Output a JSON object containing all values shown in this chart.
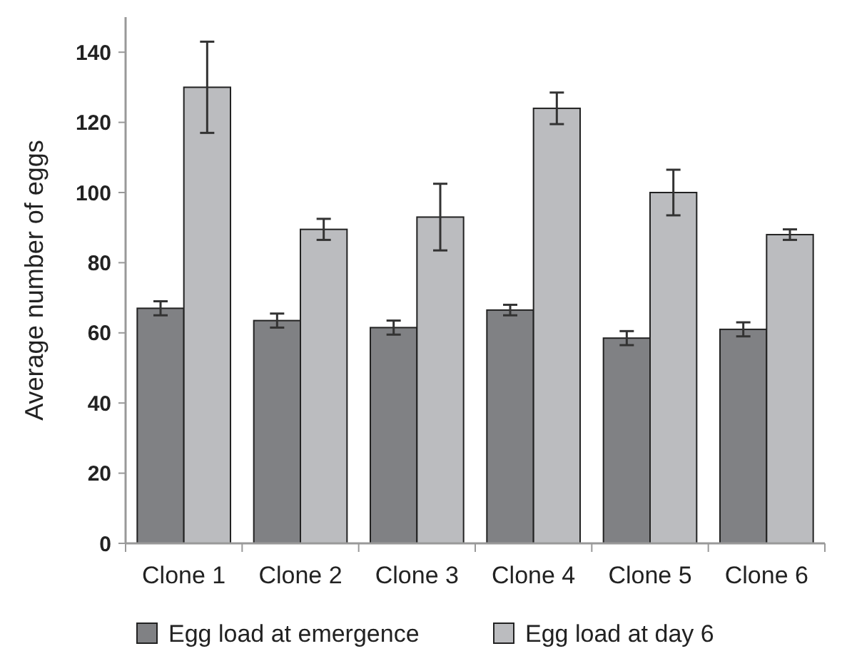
{
  "chart_data": {
    "type": "bar",
    "ylabel": "Average number of eggs",
    "categories": [
      "Clone 1",
      "Clone 2",
      "Clone 3",
      "Clone 4",
      "Clone 5",
      "Clone 6"
    ],
    "series": [
      {
        "name": "Egg load at emergence",
        "color": "#808184",
        "values": [
          67,
          63.5,
          61.5,
          66.5,
          58.5,
          61
        ],
        "errors": [
          2,
          2,
          2,
          1.5,
          2,
          2
        ]
      },
      {
        "name": "Egg load at day 6",
        "color": "#bbbcbf",
        "values": [
          130,
          89.5,
          93,
          124,
          100,
          88
        ],
        "errors": [
          13,
          3,
          9.5,
          4.5,
          6.5,
          1.5
        ]
      }
    ],
    "ylim": [
      0,
      150
    ],
    "yticks": [
      0,
      20,
      40,
      60,
      80,
      100,
      120,
      140
    ],
    "grid": false,
    "legend": "bottom"
  }
}
